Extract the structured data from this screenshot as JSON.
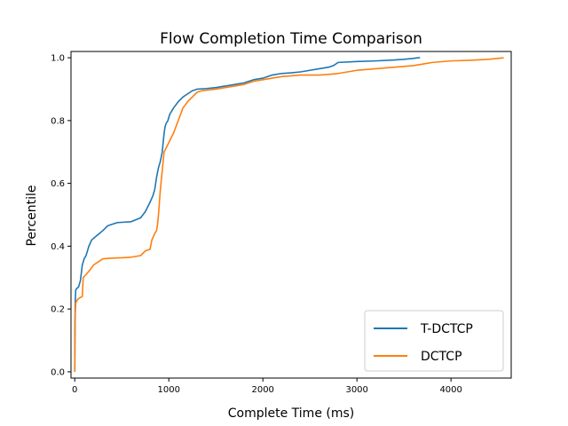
{
  "chart_data": {
    "type": "line",
    "title": "Flow Completion Time Comparison",
    "xlabel": "Complete Time (ms)",
    "ylabel": "Percentile",
    "xlim": [
      -40,
      4640
    ],
    "ylim": [
      -0.02,
      1.02
    ],
    "xticks": [
      0,
      1000,
      2000,
      3000,
      4000
    ],
    "yticks": [
      0.0,
      0.2,
      0.4,
      0.6,
      0.8,
      1.0
    ],
    "ytick_labels": [
      "0.0",
      "0.2",
      "0.4",
      "0.6",
      "0.8",
      "1.0"
    ],
    "grid": false,
    "legend": "bottom-right",
    "series": [
      {
        "name": "T-DCTCP",
        "color": "#1f77b4",
        "x": [
          0,
          2,
          5,
          10,
          20,
          40,
          60,
          80,
          100,
          120,
          150,
          180,
          220,
          260,
          300,
          350,
          400,
          450,
          500,
          600,
          700,
          750,
          800,
          830,
          850,
          870,
          890,
          910,
          930,
          950,
          960,
          970,
          990,
          1010,
          1050,
          1100,
          1150,
          1200,
          1250,
          1300,
          1400,
          1500,
          1600,
          1700,
          1800,
          1900,
          2000,
          2100,
          2200,
          2300,
          2400,
          2500,
          2600,
          2700,
          2750,
          2800,
          3000,
          3200,
          3400,
          3500,
          3600,
          3650,
          3670
        ],
        "y": [
          0.0,
          0.15,
          0.22,
          0.26,
          0.265,
          0.27,
          0.29,
          0.34,
          0.36,
          0.37,
          0.4,
          0.42,
          0.43,
          0.44,
          0.45,
          0.465,
          0.47,
          0.475,
          0.476,
          0.478,
          0.49,
          0.51,
          0.54,
          0.56,
          0.58,
          0.62,
          0.65,
          0.67,
          0.7,
          0.76,
          0.78,
          0.79,
          0.8,
          0.82,
          0.84,
          0.86,
          0.875,
          0.885,
          0.895,
          0.9,
          0.902,
          0.905,
          0.91,
          0.915,
          0.92,
          0.93,
          0.935,
          0.945,
          0.95,
          0.952,
          0.955,
          0.96,
          0.965,
          0.97,
          0.975,
          0.985,
          0.988,
          0.99,
          0.993,
          0.995,
          0.998,
          1.0,
          1.0
        ]
      },
      {
        "name": "DCTCP",
        "color": "#ff7f0e",
        "x": [
          0,
          2,
          5,
          10,
          30,
          50,
          80,
          90,
          120,
          150,
          200,
          250,
          300,
          400,
          500,
          600,
          700,
          750,
          800,
          820,
          850,
          870,
          880,
          890,
          900,
          910,
          950,
          1000,
          1050,
          1100,
          1150,
          1200,
          1250,
          1300,
          1350,
          1500,
          1600,
          1700,
          1800,
          1900,
          2000,
          2100,
          2200,
          2400,
          2600,
          2700,
          2800,
          3000,
          3200,
          3400,
          3600,
          3700,
          3800,
          4000,
          4200,
          4400,
          4500,
          4560
        ],
        "y": [
          0.0,
          0.1,
          0.18,
          0.22,
          0.23,
          0.235,
          0.24,
          0.3,
          0.31,
          0.32,
          0.34,
          0.35,
          0.36,
          0.362,
          0.363,
          0.365,
          0.37,
          0.385,
          0.39,
          0.42,
          0.44,
          0.45,
          0.47,
          0.5,
          0.54,
          0.58,
          0.7,
          0.73,
          0.76,
          0.8,
          0.84,
          0.86,
          0.875,
          0.89,
          0.895,
          0.9,
          0.905,
          0.91,
          0.915,
          0.925,
          0.93,
          0.935,
          0.94,
          0.945,
          0.945,
          0.947,
          0.95,
          0.96,
          0.965,
          0.97,
          0.975,
          0.98,
          0.985,
          0.99,
          0.992,
          0.995,
          0.998,
          1.0
        ]
      }
    ]
  }
}
